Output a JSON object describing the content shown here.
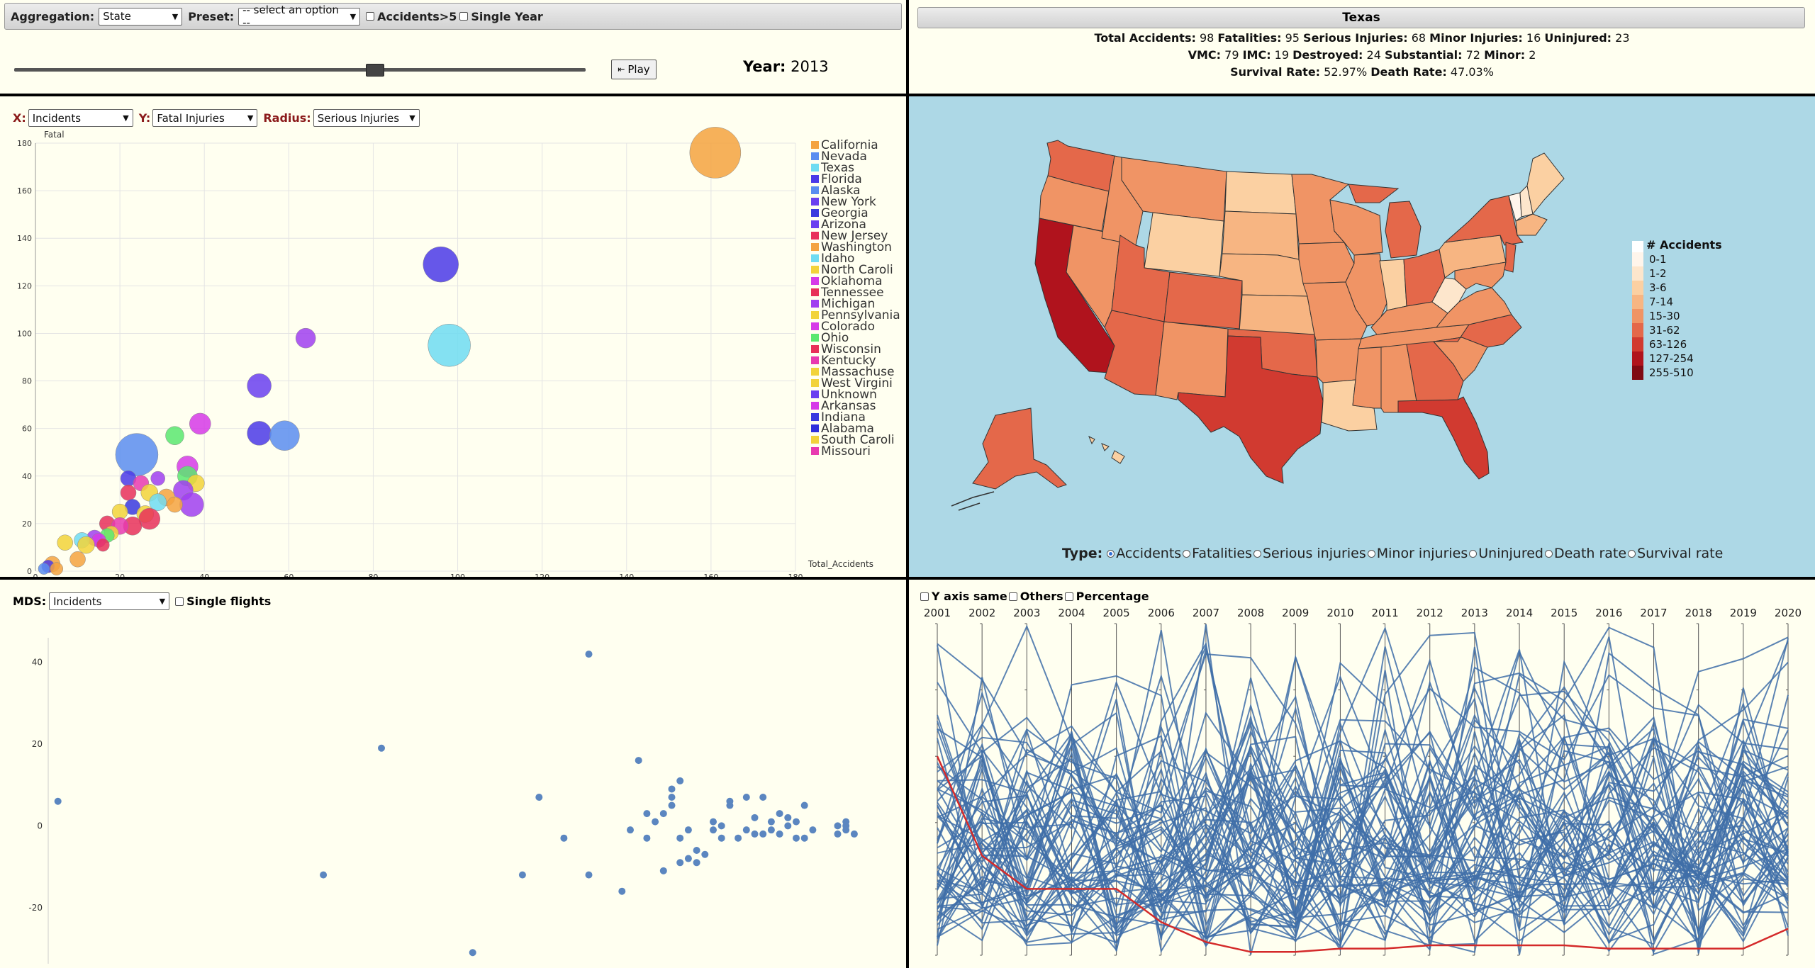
{
  "controls": {
    "aggregation_label": "Aggregation:",
    "aggregation_value": "State",
    "preset_label": "Preset:",
    "preset_value": "-- select an option --",
    "accidents_gt5_label": "Accidents>5",
    "single_year_label": "Single Year",
    "play_label": "Play",
    "year_label": "Year:",
    "year_value": "2013",
    "slider_fraction": 0.63
  },
  "info": {
    "state": "Texas",
    "line1": [
      {
        "label": "Total Accidents:",
        "value": "98"
      },
      {
        "label": "Fatalities:",
        "value": "95"
      },
      {
        "label": "Serious Injuries:",
        "value": "68"
      },
      {
        "label": "Minor Injuries:",
        "value": "16"
      },
      {
        "label": "Uninjured:",
        "value": "23"
      }
    ],
    "line2": [
      {
        "label": "VMC:",
        "value": "79"
      },
      {
        "label": "IMC:",
        "value": "19"
      },
      {
        "label": "Destroyed:",
        "value": "24"
      },
      {
        "label": "Substantial:",
        "value": "72"
      },
      {
        "label": "Minor:",
        "value": "2"
      }
    ],
    "line3": [
      {
        "label": "Survival Rate:",
        "value": "52.97%"
      },
      {
        "label": "Death Rate:",
        "value": "47.03%"
      }
    ]
  },
  "scatter": {
    "x_label": "X:",
    "x_value": "Incidents",
    "y_label": "Y:",
    "y_value": "Fatal Injuries",
    "r_label": "Radius:",
    "r_value": "Serious Injuries",
    "legend": [
      {
        "name": "California",
        "color": "#f4a340"
      },
      {
        "name": "Nevada",
        "color": "#5a8df0"
      },
      {
        "name": "Texas",
        "color": "#6fdcf2"
      },
      {
        "name": "Florida",
        "color": "#4b3ae8"
      },
      {
        "name": "Alaska",
        "color": "#5a8df0"
      },
      {
        "name": "New York",
        "color": "#6a40f0"
      },
      {
        "name": "Georgia",
        "color": "#3a3adf"
      },
      {
        "name": "Arizona",
        "color": "#6a40f0"
      },
      {
        "name": "New Jersey",
        "color": "#e8305a"
      },
      {
        "name": "Washington",
        "color": "#f4a340"
      },
      {
        "name": "Idaho",
        "color": "#6fdcf2"
      },
      {
        "name": "North Caroli",
        "color": "#f2d33a"
      },
      {
        "name": "Oklahoma",
        "color": "#d63ae8"
      },
      {
        "name": "Tennessee",
        "color": "#e8305a"
      },
      {
        "name": "Michigan",
        "color": "#a040f0"
      },
      {
        "name": "Pennsylvania",
        "color": "#f2d33a"
      },
      {
        "name": "Colorado",
        "color": "#d63ae8"
      },
      {
        "name": "Ohio",
        "color": "#5ae870"
      },
      {
        "name": "Wisconsin",
        "color": "#e8305a"
      },
      {
        "name": "Kentucky",
        "color": "#e83ab0"
      },
      {
        "name": "Massachuse",
        "color": "#f2d33a"
      },
      {
        "name": "West Virgini",
        "color": "#f2d33a"
      },
      {
        "name": "Unknown",
        "color": "#6a40f0"
      },
      {
        "name": "Arkansas",
        "color": "#d63ae8"
      },
      {
        "name": "Indiana",
        "color": "#3a3adf"
      },
      {
        "name": "Alabama",
        "color": "#2f2fdc"
      },
      {
        "name": "South Caroli",
        "color": "#f2d33a"
      },
      {
        "name": "Missouri",
        "color": "#e83ab0"
      }
    ]
  },
  "map": {
    "legend_title": "# Accidents",
    "legend": [
      {
        "label": "0-1",
        "color": "#fff5eb"
      },
      {
        "label": "1-2",
        "color": "#fde6cc"
      },
      {
        "label": "3-6",
        "color": "#fbd0a2"
      },
      {
        "label": "7-14",
        "color": "#f7b582"
      },
      {
        "label": "15-30",
        "color": "#f09465"
      },
      {
        "label": "31-62",
        "color": "#e4684a"
      },
      {
        "label": "63-126",
        "color": "#d13a30"
      },
      {
        "label": "127-254",
        "color": "#b0131d"
      },
      {
        "label": "255-510",
        "color": "#7f0a14"
      }
    ],
    "type_label": "Type:",
    "types": [
      "Accidents",
      "Fatalities",
      "Serious injuries",
      "Minor injuries",
      "Uninjured",
      "Death rate",
      "Survival rate"
    ]
  },
  "mds": {
    "label": "MDS:",
    "value": "Incidents",
    "single_flights_label": "Single flights"
  },
  "pc": {
    "y_axis_same_label": "Y axis same",
    "others_label": "Others",
    "percentage_label": "Percentage",
    "years": [
      "2001",
      "2002",
      "2003",
      "2004",
      "2005",
      "2006",
      "2007",
      "2008",
      "2009",
      "2010",
      "2011",
      "2012",
      "2013",
      "2014",
      "2015",
      "2016",
      "2017",
      "2018",
      "2019",
      "2020"
    ],
    "highlight": [
      0.6,
      0.3,
      0.2,
      0.2,
      0.2,
      0.1,
      0.04,
      0.01,
      0.01,
      0.02,
      0.02,
      0.03,
      0.03,
      0.03,
      0.03,
      0.02,
      0.02,
      0.02,
      0.02,
      0.08
    ]
  },
  "chart_data": [
    {
      "type": "scatter",
      "title": "",
      "xlabel": "Total_Accidents",
      "ylabel": "Fatal",
      "xlim": [
        0,
        180
      ],
      "ylim": [
        0,
        180
      ],
      "x_ticks": [
        0,
        20,
        40,
        60,
        80,
        100,
        120,
        140,
        160,
        180
      ],
      "y_ticks": [
        0,
        20,
        40,
        60,
        80,
        100,
        120,
        140,
        160,
        180
      ],
      "points": [
        {
          "x": 161,
          "y": 176,
          "r": 36,
          "color": "#f4a340"
        },
        {
          "x": 96,
          "y": 129,
          "r": 25,
          "color": "#4b3ae8"
        },
        {
          "x": 98,
          "y": 95,
          "r": 30,
          "color": "#6fdcf2"
        },
        {
          "x": 64,
          "y": 98,
          "r": 14,
          "color": "#a040f0"
        },
        {
          "x": 53,
          "y": 78,
          "r": 17,
          "color": "#6a40f0"
        },
        {
          "x": 53,
          "y": 58,
          "r": 17,
          "color": "#4b3ae8"
        },
        {
          "x": 59,
          "y": 57,
          "r": 21,
          "color": "#5a8df0"
        },
        {
          "x": 39,
          "y": 62,
          "r": 15,
          "color": "#d63ae8"
        },
        {
          "x": 33,
          "y": 57,
          "r": 13,
          "color": "#5ae870"
        },
        {
          "x": 24,
          "y": 49,
          "r": 30,
          "color": "#5a8df0"
        },
        {
          "x": 36,
          "y": 44,
          "r": 15,
          "color": "#d63ae8"
        },
        {
          "x": 36,
          "y": 40,
          "r": 14,
          "color": "#5ae870"
        },
        {
          "x": 38,
          "y": 37,
          "r": 12,
          "color": "#f2d33a"
        },
        {
          "x": 29,
          "y": 39,
          "r": 10,
          "color": "#a040f0"
        },
        {
          "x": 22,
          "y": 39,
          "r": 11,
          "color": "#4b3ae8"
        },
        {
          "x": 25,
          "y": 37,
          "r": 11,
          "color": "#e83ab0"
        },
        {
          "x": 35,
          "y": 34,
          "r": 14,
          "color": "#a040f0"
        },
        {
          "x": 22,
          "y": 33,
          "r": 11,
          "color": "#e8305a"
        },
        {
          "x": 27,
          "y": 33,
          "r": 12,
          "color": "#f2d33a"
        },
        {
          "x": 31,
          "y": 31,
          "r": 12,
          "color": "#f4a340"
        },
        {
          "x": 29,
          "y": 29,
          "r": 12,
          "color": "#6fdcf2"
        },
        {
          "x": 37,
          "y": 28,
          "r": 17,
          "color": "#a040f0"
        },
        {
          "x": 33,
          "y": 28,
          "r": 11,
          "color": "#f4a340"
        },
        {
          "x": 23,
          "y": 27,
          "r": 11,
          "color": "#3a3adf"
        },
        {
          "x": 20,
          "y": 25,
          "r": 11,
          "color": "#f2d33a"
        },
        {
          "x": 26,
          "y": 24,
          "r": 12,
          "color": "#f2d33a"
        },
        {
          "x": 27,
          "y": 22,
          "r": 15,
          "color": "#e8305a"
        },
        {
          "x": 17,
          "y": 20,
          "r": 11,
          "color": "#e8305a"
        },
        {
          "x": 23,
          "y": 19,
          "r": 13,
          "color": "#e8305a"
        },
        {
          "x": 20,
          "y": 19,
          "r": 12,
          "color": "#e83ab0"
        },
        {
          "x": 18,
          "y": 16,
          "r": 10,
          "color": "#f2d33a"
        },
        {
          "x": 17,
          "y": 15,
          "r": 10,
          "color": "#5ae870"
        },
        {
          "x": 14,
          "y": 14,
          "r": 11,
          "color": "#a040f0"
        },
        {
          "x": 15,
          "y": 13,
          "r": 10,
          "color": "#d63ae8"
        },
        {
          "x": 16,
          "y": 11,
          "r": 9,
          "color": "#e8305a"
        },
        {
          "x": 11,
          "y": 13,
          "r": 11,
          "color": "#6fdcf2"
        },
        {
          "x": 12,
          "y": 11,
          "r": 12,
          "color": "#f2d33a"
        },
        {
          "x": 7,
          "y": 12,
          "r": 11,
          "color": "#f2d33a"
        },
        {
          "x": 10,
          "y": 5,
          "r": 11,
          "color": "#f4a340"
        },
        {
          "x": 4,
          "y": 3,
          "r": 11,
          "color": "#f4a340"
        },
        {
          "x": 3,
          "y": 2,
          "r": 9,
          "color": "#4b3ae8"
        },
        {
          "x": 5,
          "y": 1,
          "r": 9,
          "color": "#f4a340"
        },
        {
          "x": 2,
          "y": 1,
          "r": 8,
          "color": "#5a8df0"
        }
      ]
    },
    {
      "type": "scatter",
      "title": "MDS",
      "xlabel": "",
      "ylabel": "",
      "y_ticks": [
        40,
        20,
        0,
        -20
      ],
      "ylim": [
        -32,
        46
      ],
      "xlim": [
        0,
        100
      ],
      "points": [
        {
          "x": 1,
          "y": 6
        },
        {
          "x": 40,
          "y": 19
        },
        {
          "x": 33,
          "y": -12
        },
        {
          "x": 51,
          "y": -31
        },
        {
          "x": 57,
          "y": -12
        },
        {
          "x": 59,
          "y": 7
        },
        {
          "x": 62,
          "y": -3
        },
        {
          "x": 65,
          "y": 42
        },
        {
          "x": 65,
          "y": -12
        },
        {
          "x": 69,
          "y": -16
        },
        {
          "x": 70,
          "y": -1
        },
        {
          "x": 71,
          "y": 16
        },
        {
          "x": 72,
          "y": -3
        },
        {
          "x": 72,
          "y": 3
        },
        {
          "x": 73,
          "y": 1
        },
        {
          "x": 74,
          "y": -11
        },
        {
          "x": 74,
          "y": 3
        },
        {
          "x": 75,
          "y": 9
        },
        {
          "x": 75,
          "y": 7
        },
        {
          "x": 75,
          "y": 5
        },
        {
          "x": 76,
          "y": -9
        },
        {
          "x": 76,
          "y": 11
        },
        {
          "x": 76,
          "y": -3
        },
        {
          "x": 77,
          "y": -8
        },
        {
          "x": 77,
          "y": -1
        },
        {
          "x": 78,
          "y": -9
        },
        {
          "x": 78,
          "y": -6
        },
        {
          "x": 79,
          "y": -7
        },
        {
          "x": 80,
          "y": 1
        },
        {
          "x": 80,
          "y": -1
        },
        {
          "x": 81,
          "y": -3
        },
        {
          "x": 81,
          "y": 0
        },
        {
          "x": 82,
          "y": 5
        },
        {
          "x": 82,
          "y": 6
        },
        {
          "x": 83,
          "y": -3
        },
        {
          "x": 84,
          "y": 7
        },
        {
          "x": 84,
          "y": -1
        },
        {
          "x": 85,
          "y": 2
        },
        {
          "x": 85,
          "y": -2
        },
        {
          "x": 86,
          "y": -2
        },
        {
          "x": 86,
          "y": 7
        },
        {
          "x": 87,
          "y": 1
        },
        {
          "x": 87,
          "y": -1
        },
        {
          "x": 88,
          "y": 3
        },
        {
          "x": 88,
          "y": -2
        },
        {
          "x": 89,
          "y": 0
        },
        {
          "x": 89,
          "y": 2
        },
        {
          "x": 90,
          "y": -3
        },
        {
          "x": 90,
          "y": 1
        },
        {
          "x": 91,
          "y": 5
        },
        {
          "x": 91,
          "y": -3
        },
        {
          "x": 92,
          "y": -1
        },
        {
          "x": 95,
          "y": 0
        },
        {
          "x": 95,
          "y": -2
        },
        {
          "x": 96,
          "y": 1
        },
        {
          "x": 96,
          "y": -1
        },
        {
          "x": 97,
          "y": -2
        },
        {
          "x": 96,
          "y": 0
        }
      ]
    }
  ]
}
